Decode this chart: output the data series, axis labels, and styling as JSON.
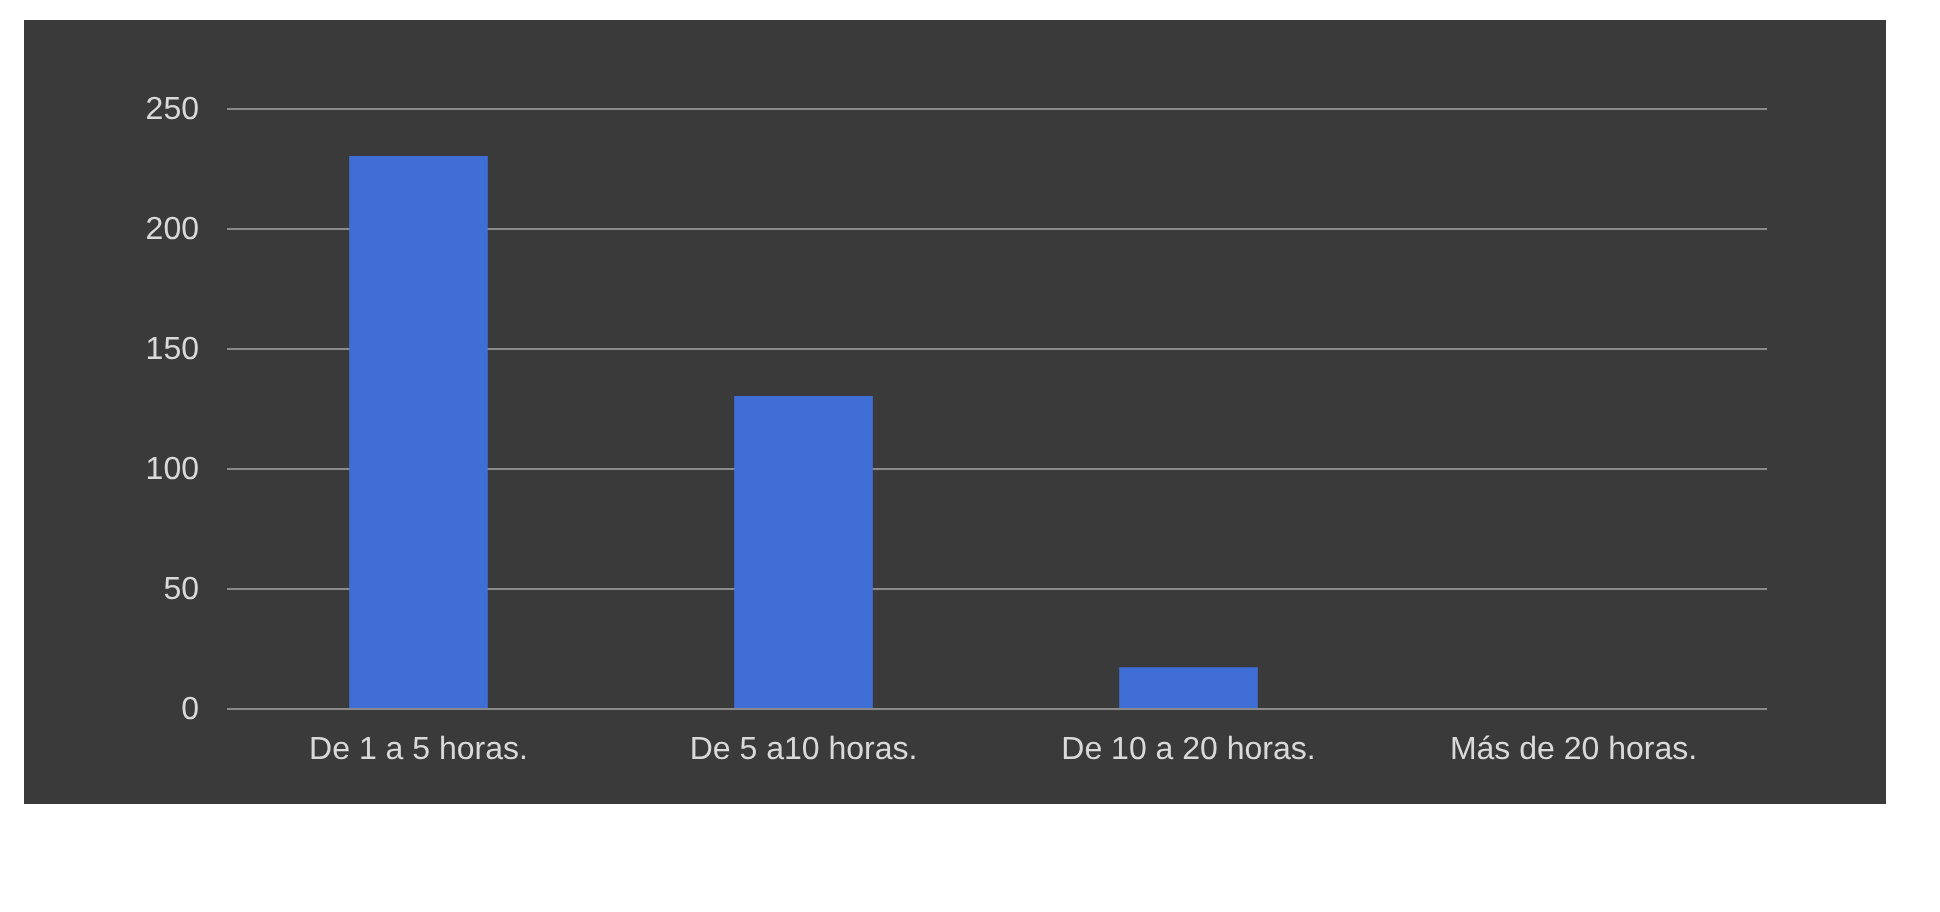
{
  "chart_data": {
    "type": "bar",
    "categories": [
      "De 1 a 5 horas.",
      "De 5 a10 horas.",
      "De 10 a 20 horas.",
      "Más de 20 horas."
    ],
    "values": [
      230,
      130,
      17,
      0
    ],
    "color": "#3f6fd6",
    "ylim": [
      0,
      250
    ],
    "yticks": [
      0,
      50,
      100,
      150,
      200,
      250
    ],
    "grid": true
  }
}
